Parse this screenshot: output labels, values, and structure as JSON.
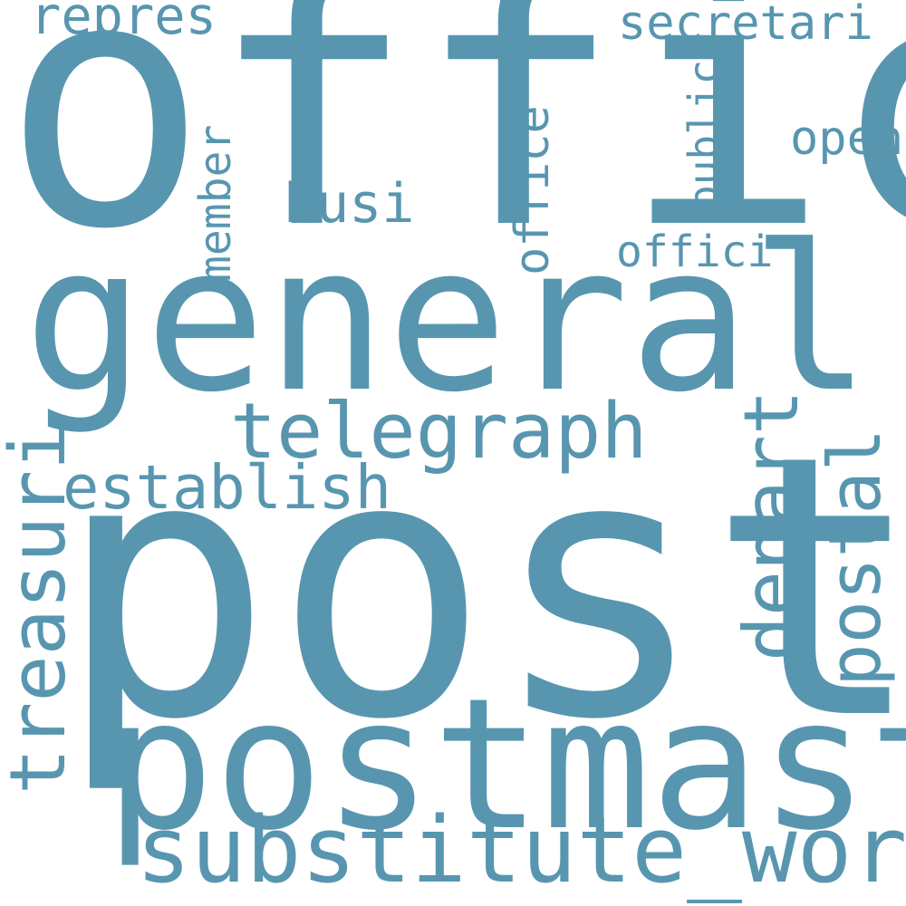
{
  "colors": {
    "background": "#ffffff",
    "word": "#5896b0"
  },
  "words": {
    "offic": "offic",
    "general": "general",
    "post": "post",
    "postmast": "postmast",
    "substitute_word": "substitute_word",
    "telegraph": "telegraph",
    "establish": "establish",
    "treasuri": "treasuri",
    "depart": "depart",
    "postal": "postal",
    "repres": "repres",
    "secretari": "secretari",
    "busi": "busi",
    "member": "member",
    "office": "office",
    "public": "public",
    "open": "open",
    "offici": "offici"
  }
}
